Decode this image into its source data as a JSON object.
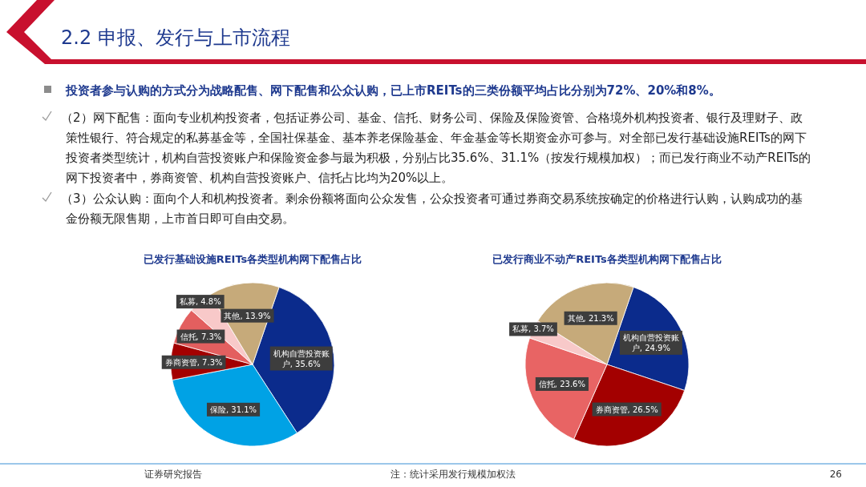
{
  "chart_data": [
    {
      "type": "other",
      "title": "2.2 申报、发行与上市流程",
      "annotations": [
        "投资者参与认购的方式分为战略配售、网下配售和公众认购，已上市REITs的三类份额平均占比分别为72%、20%和8%。",
        "（2）网下配售：面向专业机构投资者，包括证券公司、基金、信托、财务公司、保险及保险资管、合格境外机构投资者、银行及理财子、政策性银行、符合规定的私募基金等，全国社保基金、基本养老保险基金、年金基金等长期资金亦可参与。对全部已发行基础设施REITs的网下投资者类型统计，机构自营投资账户和保险资金参与最为积极，分别占比35.6%、31.1%（按发行规模加权）；而已发行商业不动产REITs的网下投资者中，券商资管、机构自营投资账户、信托占比均为20%以上。",
        "（3）公众认购：面向个人和机构投资者。剩余份额将面向公众发售，公众投资者可通过券商交易系统按确定的价格进行认购，认购成功的基金份额无限售期，上市首日即可自由交易。",
        "证券研究报告",
        "注：统计采用发行规模加权法",
        "26"
      ]
    },
    {
      "type": "pie",
      "title": "已发行基础设施REITs各类型机构网下配售占比",
      "categories": [
        "机构自营投资账户",
        "保险",
        "券商资管",
        "信托",
        "私募",
        "其他"
      ],
      "values": [
        35.6,
        31.1,
        7.3,
        7.3,
        4.8,
        13.9
      ],
      "colors": [
        "#0b2b8c",
        "#00a2e5",
        "#a30000",
        "#e35f5f",
        "#f8c9c9",
        "#c6aa7a"
      ],
      "value_labels": [
        "35.6%",
        "31.1%",
        "7.3%",
        "7.3%",
        "4.8%",
        "13.9%"
      ]
    },
    {
      "type": "pie",
      "title": "已发行商业不动产REITs各类型机构网下配售占比",
      "categories": [
        "机构自营投资账户",
        "券商资管",
        "信托",
        "私募",
        "其他"
      ],
      "values": [
        24.9,
        26.5,
        23.6,
        3.7,
        21.3
      ],
      "colors": [
        "#0b2b8c",
        "#a30000",
        "#e86464",
        "#f8c9c9",
        "#c6aa7a"
      ],
      "value_labels": [
        "24.9%",
        "26.5%",
        "23.6%",
        "3.7%",
        "21.3%"
      ]
    }
  ]
}
